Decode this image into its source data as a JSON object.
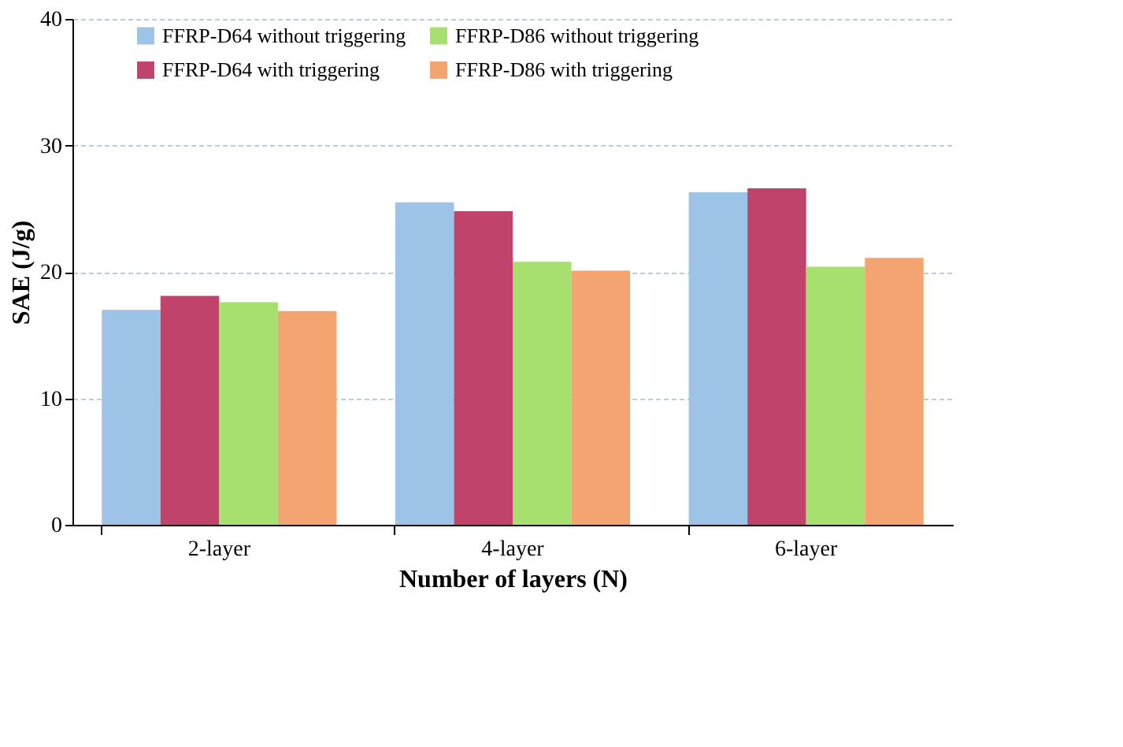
{
  "chart_data": {
    "type": "bar",
    "xlabel": "Number of layers (N)",
    "ylabel": "SAE (J/g)",
    "categories": [
      "2-layer",
      "4-layer",
      "6-layer"
    ],
    "series": [
      {
        "name": "FFRP-D64 without triggering",
        "color": "#9dc3e6",
        "values": [
          17.0,
          25.5,
          26.3
        ]
      },
      {
        "name": "FFRP-D64 with triggering",
        "color": "#c0436b",
        "values": [
          18.1,
          24.8,
          26.6
        ]
      },
      {
        "name": "FFRP-D86 without triggering",
        "color": "#a8e070",
        "values": [
          17.6,
          20.8,
          20.4
        ]
      },
      {
        "name": "FFRP-D86 with triggering",
        "color": "#f4a470",
        "values": [
          16.9,
          20.1,
          21.1
        ]
      }
    ],
    "ylim": [
      0,
      40
    ],
    "yticks": [
      0,
      10,
      20,
      30,
      40
    ],
    "grid": "y",
    "legend": "top"
  }
}
